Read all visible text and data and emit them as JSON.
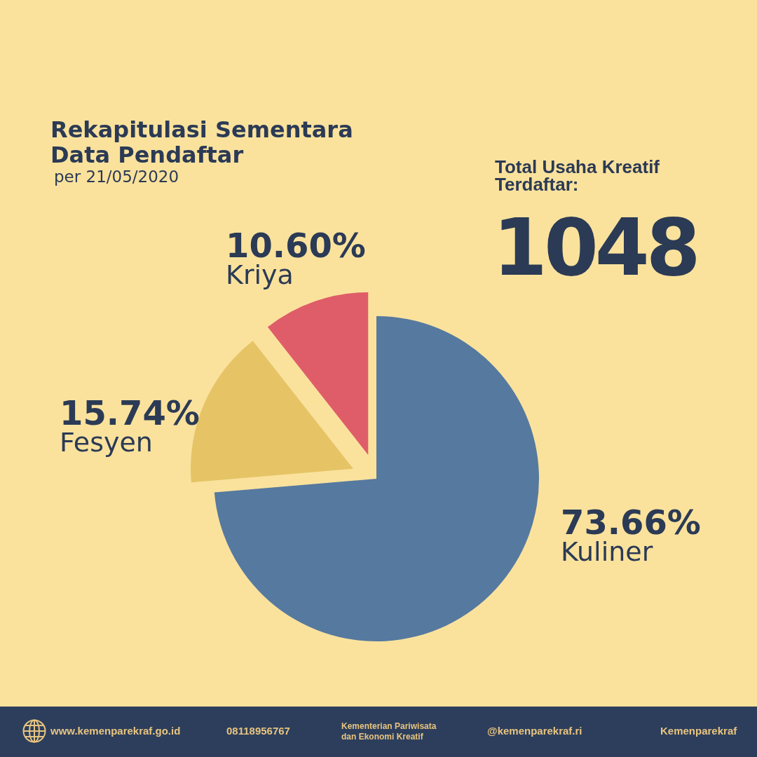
{
  "chart_data": {
    "type": "pie",
    "title": "Rekapitulasi Sementara Data Pendaftar",
    "subtitle": "per 21/05/2020",
    "categories": [
      "Kuliner",
      "Fesyen",
      "Kriya"
    ],
    "values": [
      73.66,
      15.74,
      10.6
    ],
    "value_labels": [
      "73.66%",
      "15.74%",
      "10.60%"
    ],
    "colors": [
      "#56799f",
      "#e6c466",
      "#df5d69"
    ],
    "annotations": [
      "Total Usaha Kreatif Terdaftar:",
      "1048",
      "www.kemenparekraf.go.id",
      "08118956767",
      "Kementerian Pariwisata dan Ekonomi Kreatif",
      "@kemenparekraf.ri",
      "Kemenparekraf"
    ]
  }
}
